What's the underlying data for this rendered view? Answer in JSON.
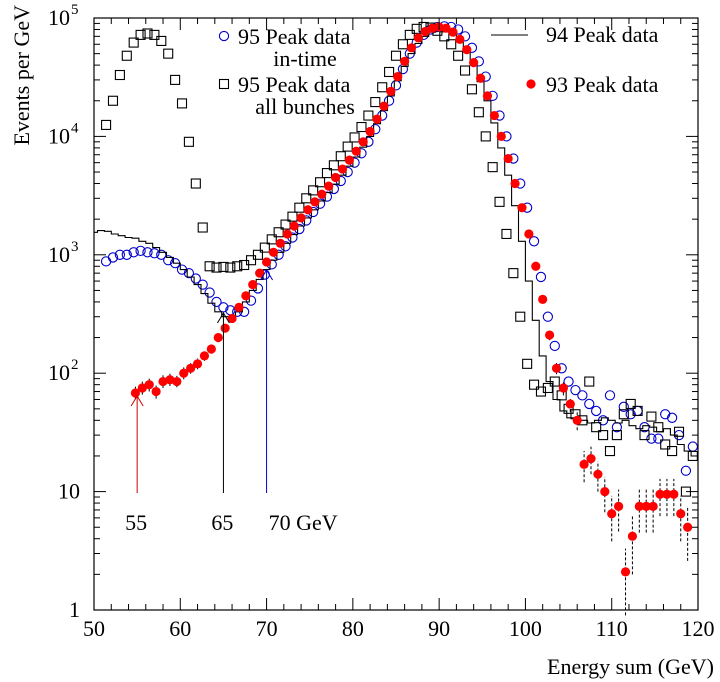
{
  "chart_data": {
    "type": "scatter",
    "title": "",
    "xlabel": "Energy sum (GeV)",
    "ylabel": "Events per GeV",
    "xlim": [
      50,
      120
    ],
    "ylim": [
      1,
      100000
    ],
    "yscale": "log",
    "x_ticks": [
      50,
      60,
      70,
      80,
      90,
      100,
      110,
      120
    ],
    "y_ticks": [
      {
        "value": 1,
        "label": "1",
        "sup": ""
      },
      {
        "value": 10,
        "label": "10",
        "sup": ""
      },
      {
        "value": 100,
        "label": "10",
        "sup": "2"
      },
      {
        "value": 1000,
        "label": "10",
        "sup": "3"
      },
      {
        "value": 10000,
        "label": "10",
        "sup": "4"
      },
      {
        "value": 100000,
        "label": "10",
        "sup": "5"
      }
    ],
    "legend": [
      {
        "marker": "circle",
        "color": "#0000cc",
        "lines": [
          "95 Peak data",
          "in-time"
        ]
      },
      {
        "marker": "square",
        "color": "#000000",
        "lines": [
          "95 Peak data",
          "all bunches"
        ]
      },
      {
        "marker": "line",
        "color": "#000000",
        "lines": [
          "94 Peak data"
        ]
      },
      {
        "marker": "dot",
        "color": "#ff0000",
        "lines": [
          "93 Peak data"
        ]
      }
    ],
    "annotations": [
      {
        "text": "55",
        "x": 55,
        "color": "#cc0000"
      },
      {
        "text": "65",
        "x": 65,
        "color": "#000000"
      },
      {
        "text": "70  GeV",
        "x": 70,
        "color": "#0000cc"
      }
    ],
    "series": [
      {
        "name": "95 Peak data in-time",
        "marker": "circle",
        "color": "#0000cc",
        "x": [
          51.4,
          52.2,
          53.0,
          53.8,
          54.6,
          55.4,
          56.2,
          57.0,
          57.8,
          58.6,
          59.4,
          60.2,
          61.0,
          61.8,
          62.6,
          63.4,
          64.2,
          65.0,
          65.8,
          66.6,
          67.4,
          68.2,
          69.0,
          69.8,
          70.6,
          71.4,
          72.2,
          73.0,
          73.8,
          74.6,
          75.4,
          76.2,
          77.0,
          77.8,
          78.6,
          79.4,
          80.2,
          81.0,
          81.8,
          82.6,
          83.4,
          84.2,
          85.0,
          85.8,
          86.6,
          87.4,
          88.2,
          89.0,
          89.8,
          90.6,
          91.4,
          92.2,
          93.0,
          93.8,
          94.6,
          95.4,
          96.2,
          97.0,
          97.8,
          98.6,
          99.4,
          100.2,
          101.0,
          101.8,
          102.6,
          103.4,
          104.2,
          105.0,
          105.8,
          106.6,
          107.4,
          108.2,
          109.0,
          109.8,
          110.6,
          111.4,
          112.2,
          113.0,
          113.8,
          114.6,
          115.4,
          116.2,
          117.0,
          117.8,
          118.6,
          119.4
        ],
        "y": [
          880,
          950,
          1000,
          1000,
          1050,
          1080,
          1050,
          1030,
          1000,
          900,
          850,
          750,
          700,
          630,
          560,
          480,
          400,
          360,
          340,
          330,
          330,
          410,
          520,
          680,
          830,
          1000,
          1180,
          1400,
          1650,
          1950,
          2300,
          2700,
          3100,
          3600,
          4200,
          5000,
          6000,
          7200,
          9000,
          11500,
          15000,
          20000,
          27000,
          37000,
          50000,
          62000,
          72000,
          80000,
          84000,
          85000,
          84000,
          80000,
          70000,
          56000,
          43000,
          32000,
          22000,
          15000,
          10000,
          6500,
          4000,
          2500,
          1300,
          650,
          300,
          170,
          110,
          85,
          72,
          65,
          55,
          48,
          40,
          65,
          35,
          52,
          45,
          48,
          35,
          28,
          28,
          45,
          42,
          30,
          15,
          24
        ],
        "err_lo": [],
        "err_hi": []
      },
      {
        "name": "95 Peak data all bunches",
        "marker": "square",
        "color": "#000000",
        "x": [
          51.4,
          52.2,
          53.0,
          53.8,
          54.6,
          55.4,
          56.2,
          57.0,
          57.8,
          58.6,
          59.4,
          60.2,
          61.0,
          61.8,
          62.6,
          63.4,
          64.2,
          65.0,
          65.8,
          66.6,
          67.4,
          68.2,
          69.0,
          69.8,
          70.6,
          71.4,
          72.2,
          73.0,
          73.8,
          74.6,
          75.4,
          76.2,
          77.0,
          77.8,
          78.6,
          79.4,
          80.2,
          81.0,
          81.8,
          82.6,
          83.4,
          84.2,
          85.0,
          85.8,
          86.6,
          87.4,
          88.2,
          89.0,
          89.8,
          90.6,
          91.4,
          92.2,
          93.0,
          93.8,
          94.6,
          95.4,
          96.2,
          97.0,
          97.8,
          98.6,
          99.4,
          100.2,
          101.0,
          101.8,
          102.6,
          103.4,
          104.2,
          105.0,
          105.8,
          106.6,
          107.4,
          108.2,
          109.0,
          109.8,
          110.6,
          111.4,
          112.2,
          113.0,
          113.8,
          114.6,
          115.4,
          116.2,
          117.0,
          117.8,
          118.6,
          119.4
        ],
        "y": [
          12500,
          20000,
          33000,
          48000,
          62000,
          72000,
          74000,
          72000,
          64000,
          50000,
          30000,
          19000,
          9000,
          4000,
          1700,
          800,
          780,
          790,
          780,
          800,
          820,
          900,
          1000,
          1150,
          1350,
          1550,
          1800,
          2100,
          2500,
          3000,
          3500,
          4100,
          4900,
          5700,
          6800,
          8200,
          9800,
          12000,
          15000,
          19500,
          26000,
          35000,
          48000,
          60000,
          72000,
          81000,
          84000,
          83000,
          78000,
          70000,
          60000,
          48000,
          36000,
          25000,
          16000,
          10000,
          5500,
          2800,
          1500,
          700,
          300,
          120,
          80,
          70,
          75,
          85,
          65,
          50,
          45,
          40,
          85,
          35,
          30,
          22,
          30,
          45,
          55,
          48,
          30,
          43,
          35,
          25,
          22,
          32,
          10,
          20
        ],
        "err_lo": [],
        "err_hi": []
      },
      {
        "name": "94 Peak data",
        "marker": "line",
        "color": "#000000",
        "x": [
          50.0,
          50.8,
          51.6,
          52.4,
          53.2,
          54.0,
          54.8,
          55.6,
          56.4,
          57.2,
          58.0,
          58.8,
          59.6,
          60.4,
          61.2,
          62.0,
          62.8,
          63.6,
          64.4,
          65.2,
          66.0,
          66.8,
          67.6,
          68.4,
          69.2,
          70.0,
          70.8,
          71.6,
          72.4,
          73.2,
          74.0,
          74.8,
          75.6,
          76.4,
          77.2,
          78.0,
          78.8,
          79.6,
          80.4,
          81.2,
          82.0,
          82.8,
          83.6,
          84.4,
          85.2,
          86.0,
          86.8,
          87.6,
          88.4,
          89.2,
          90.0,
          90.8,
          91.6,
          92.4,
          93.2,
          94.0,
          94.8,
          95.6,
          96.4,
          97.2,
          98.0,
          98.8,
          99.6,
          100.4,
          101.2,
          102.0,
          102.8,
          103.6,
          104.4,
          105.2,
          106.0,
          106.8,
          107.6,
          108.4,
          109.2,
          110.0,
          110.8,
          111.6,
          112.4,
          113.2,
          114.0,
          114.8,
          115.6,
          116.4,
          117.2,
          118.0,
          118.8,
          119.6
        ],
        "y": [
          1550,
          1600,
          1580,
          1500,
          1450,
          1400,
          1380,
          1300,
          1250,
          1150,
          1050,
          950,
          850,
          750,
          650,
          560,
          470,
          390,
          330,
          300,
          300,
          330,
          400,
          500,
          620,
          750,
          900,
          1050,
          1250,
          1480,
          1750,
          2050,
          2400,
          2850,
          3350,
          3950,
          4700,
          5600,
          6700,
          8100,
          10000,
          12800,
          16500,
          22000,
          29500,
          39000,
          50000,
          61000,
          70000,
          76000,
          79000,
          78000,
          73000,
          64000,
          52000,
          40000,
          29000,
          20000,
          13000,
          8000,
          4700,
          2600,
          1300,
          600,
          280,
          140,
          85,
          60,
          48,
          42,
          40,
          40,
          38,
          40,
          42,
          40,
          38,
          40,
          36,
          34,
          36,
          35,
          32,
          34,
          30,
          25,
          22,
          20
        ],
        "err_lo": [],
        "err_hi": []
      },
      {
        "name": "93 Peak data",
        "marker": "dot",
        "color": "#ff0000",
        "x": [
          54.8,
          55.6,
          56.4,
          57.2,
          58.0,
          58.8,
          59.6,
          60.4,
          61.2,
          62.0,
          62.8,
          63.6,
          64.4,
          65.2,
          66.0,
          66.8,
          67.6,
          68.4,
          69.2,
          70.0,
          70.8,
          71.6,
          72.4,
          73.2,
          74.0,
          74.8,
          75.6,
          76.4,
          77.2,
          78.0,
          78.8,
          79.6,
          80.4,
          81.2,
          82.0,
          82.8,
          83.6,
          84.4,
          85.2,
          86.0,
          86.8,
          87.6,
          88.4,
          89.2,
          90.0,
          90.8,
          91.6,
          92.4,
          93.2,
          94.0,
          94.8,
          95.6,
          96.4,
          97.2,
          98.0,
          98.8,
          99.6,
          100.4,
          101.2,
          102.0,
          102.8,
          103.6,
          104.4,
          105.2,
          106.0,
          106.8,
          107.6,
          108.4,
          109.2,
          110.0,
          110.8,
          111.6,
          112.4,
          113.2,
          114.0,
          114.8,
          115.6,
          116.4,
          117.2,
          118.0,
          118.8
        ],
        "y": [
          68,
          75,
          80,
          70,
          85,
          88,
          85,
          100,
          110,
          120,
          140,
          160,
          200,
          240,
          290,
          360,
          450,
          560,
          700,
          870,
          1050,
          1250,
          1500,
          1750,
          2050,
          2400,
          2800,
          3250,
          3800,
          4500,
          5300,
          6300,
          7500,
          9000,
          11000,
          14000,
          18000,
          24000,
          32000,
          43000,
          56000,
          68000,
          77000,
          82000,
          84000,
          82000,
          76000,
          66000,
          54000,
          42000,
          31000,
          22000,
          15000,
          10000,
          6500,
          4000,
          2500,
          1500,
          800,
          420,
          210,
          110,
          75,
          55,
          40,
          17,
          19,
          14,
          10,
          6.5,
          7.5,
          2.1,
          4.2,
          7.5,
          7.5,
          7.5,
          9.5,
          9.5,
          9.5,
          6.5,
          5
        ],
        "err_lo": [
          60,
          66,
          70,
          61,
          75,
          78,
          76,
          89,
          99,
          108,
          127,
          146,
          183,
          221,
          268,
          334,
          419,
          522,
          655,
          817,
          990,
          1180,
          1420,
          1660,
          1950,
          2290,
          2680,
          3120,
          3650,
          4340,
          5120,
          6100,
          7270,
          8740,
          10700,
          13650,
          17580,
          23510,
          31430,
          42330,
          55230,
          67170,
          76120,
          81100,
          83100,
          81100,
          75120,
          65190,
          53270,
          41360,
          30450,
          21540,
          14640,
          9740,
          6300,
          3850,
          2390,
          1420,
          750,
          390,
          190,
          98,
          65,
          47,
          33,
          12,
          14,
          10,
          6.7,
          3.8,
          4.6,
          0.9,
          2,
          4.5,
          4.5,
          4.5,
          6.2,
          6.2,
          6.2,
          3.8,
          2.6
        ],
        "err_hi": [
          77,
          85,
          90,
          79,
          96,
          99,
          95,
          112,
          122,
          133,
          154,
          175,
          218,
          260,
          313,
          387,
          482,
          599,
          746,
          924,
          1110,
          1320,
          1580,
          1840,
          2150,
          2510,
          2920,
          3380,
          3940,
          4660,
          5480,
          6500,
          7730,
          9260,
          11300,
          14350,
          18420,
          24490,
          32570,
          43660,
          56770,
          68830,
          77880,
          82900,
          84900,
          82900,
          76880,
          66810,
          54730,
          42640,
          31550,
          22460,
          15360,
          10260,
          6700,
          4150,
          2610,
          1580,
          850,
          450,
          230,
          122,
          85,
          63,
          47,
          22,
          24,
          18,
          13.3,
          9.2,
          10.4,
          3.3,
          6.4,
          10.5,
          10.5,
          10.5,
          12.8,
          12.8,
          12.8,
          9.2,
          7.4
        ]
      }
    ]
  }
}
